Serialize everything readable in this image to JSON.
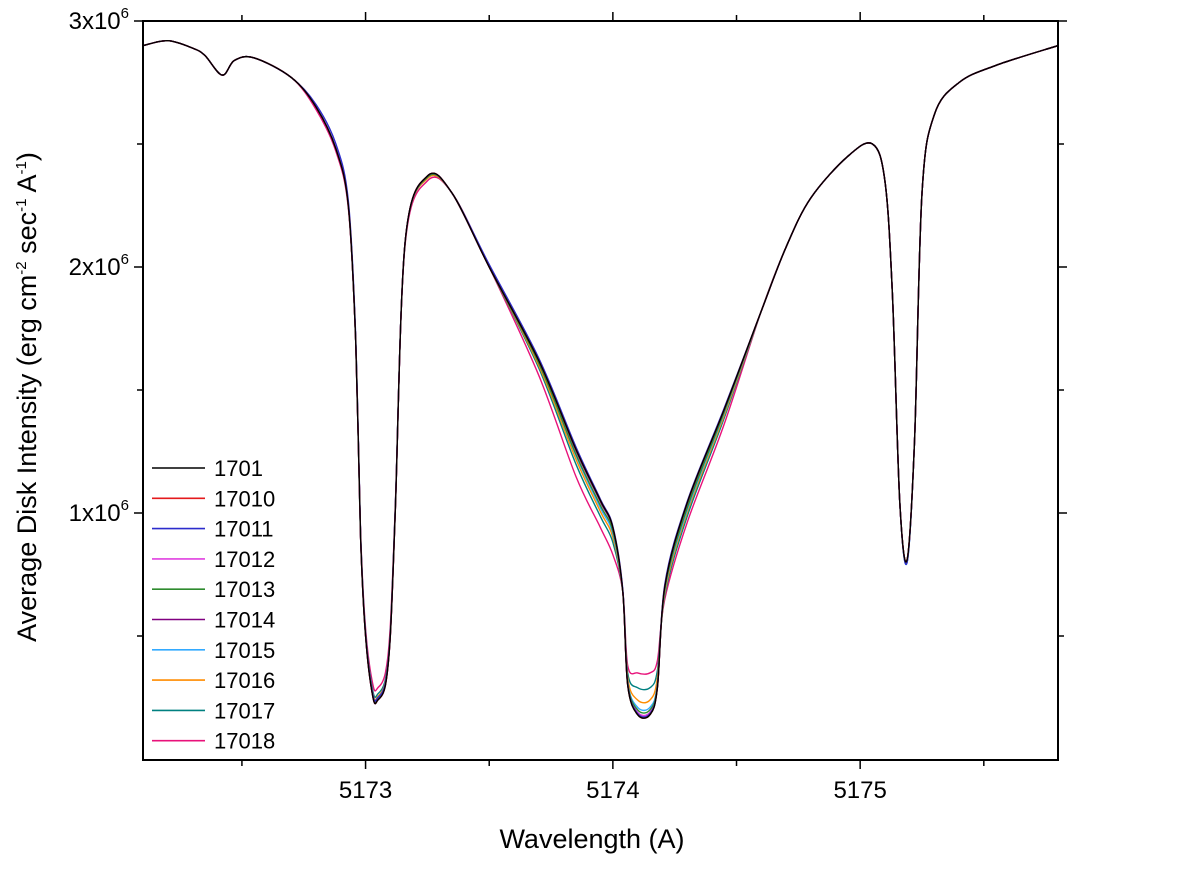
{
  "chart_data": {
    "type": "line",
    "xlabel": "Wavelength (A)",
    "ylabel": "Average Disk Intensity (erg cm-2 sec-1 A-1)",
    "ylabel_parts": {
      "a": "Average Disk Intensity (erg cm",
      "e1": "-2",
      "b": " sec",
      "e2": "-1",
      "c": " A",
      "e3": "-1",
      "d": ")"
    },
    "xlim": [
      5172.1,
      5175.8
    ],
    "ylim": [
      0,
      3000000
    ],
    "x_ticks": [
      {
        "value": 5173,
        "label": "5173"
      },
      {
        "value": 5174,
        "label": "5174"
      },
      {
        "value": 5175,
        "label": "5175"
      }
    ],
    "y_ticks": [
      {
        "value": 1000000,
        "mant": "1x10",
        "exp": "6"
      },
      {
        "value": 2000000,
        "mant": "2x10",
        "exp": "6"
      },
      {
        "value": 3000000,
        "mant": "3x10",
        "exp": "6"
      }
    ],
    "legend_position": "bottom-left",
    "x": [
      5172.1,
      5172.2,
      5172.3,
      5172.35,
      5172.42,
      5172.47,
      5172.55,
      5172.7,
      5172.8,
      5172.88,
      5172.93,
      5172.96,
      5172.98,
      5173.0,
      5173.03,
      5173.05,
      5173.08,
      5173.1,
      5173.12,
      5173.16,
      5173.25,
      5173.35,
      5173.5,
      5173.7,
      5173.85,
      5173.95,
      5174.0,
      5174.04,
      5174.06,
      5174.1,
      5174.15,
      5174.18,
      5174.21,
      5174.3,
      5174.45,
      5174.6,
      5174.7,
      5174.8,
      5174.95,
      5175.05,
      5175.1,
      5175.13,
      5175.16,
      5175.19,
      5175.22,
      5175.25,
      5175.3,
      5175.4,
      5175.55,
      5175.8
    ],
    "series": [
      {
        "name": "1701",
        "color": "#000000",
        "values": [
          2900000,
          2920000,
          2890000,
          2860000,
          2780000,
          2840000,
          2850000,
          2770000,
          2650000,
          2480000,
          2250000,
          1700000,
          900000,
          500000,
          250000,
          240000,
          300000,
          500000,
          1000000,
          2100000,
          2370000,
          2300000,
          2000000,
          1620000,
          1260000,
          1050000,
          940000,
          680000,
          300000,
          180000,
          180000,
          290000,
          700000,
          1040000,
          1420000,
          1820000,
          2080000,
          2280000,
          2450000,
          2500000,
          2350000,
          1900000,
          1050000,
          810000,
          1300000,
          2300000,
          2620000,
          2750000,
          2820000,
          2900000
        ]
      },
      {
        "name": "17010",
        "color": "#e41a1c",
        "values": [
          2900000,
          2920000,
          2890000,
          2860000,
          2780000,
          2840000,
          2850000,
          2770000,
          2650000,
          2480000,
          2250000,
          1700000,
          900000,
          500000,
          250000,
          240000,
          300000,
          500000,
          1000000,
          2100000,
          2370000,
          2300000,
          2000000,
          1620000,
          1260000,
          1050000,
          940000,
          680000,
          300000,
          180000,
          180000,
          290000,
          700000,
          1040000,
          1420000,
          1820000,
          2080000,
          2280000,
          2450000,
          2500000,
          2350000,
          1900000,
          1050000,
          810000,
          1300000,
          2300000,
          2620000,
          2750000,
          2820000,
          2900000
        ]
      },
      {
        "name": "17011",
        "color": "#2c2ccc",
        "values": [
          2900000,
          2920000,
          2890000,
          2860000,
          2780000,
          2840000,
          2850000,
          2770000,
          2660000,
          2500000,
          2270000,
          1720000,
          910000,
          510000,
          260000,
          250000,
          310000,
          510000,
          1010000,
          2100000,
          2370000,
          2300000,
          2010000,
          1630000,
          1270000,
          1055000,
          945000,
          690000,
          305000,
          185000,
          185000,
          295000,
          710000,
          1045000,
          1425000,
          1820000,
          2080000,
          2280000,
          2450000,
          2500000,
          2350000,
          1900000,
          1050000,
          800000,
          1300000,
          2300000,
          2620000,
          2750000,
          2820000,
          2900000
        ]
      },
      {
        "name": "17012",
        "color": "#e040e0",
        "values": [
          2900000,
          2920000,
          2890000,
          2860000,
          2780000,
          2840000,
          2850000,
          2770000,
          2650000,
          2480000,
          2250000,
          1700000,
          900000,
          500000,
          250000,
          240000,
          300000,
          500000,
          1000000,
          2100000,
          2370000,
          2300000,
          2000000,
          1620000,
          1260000,
          1050000,
          940000,
          680000,
          300000,
          190000,
          190000,
          290000,
          700000,
          1040000,
          1420000,
          1820000,
          2080000,
          2280000,
          2450000,
          2500000,
          2350000,
          1900000,
          1050000,
          810000,
          1300000,
          2300000,
          2620000,
          2750000,
          2820000,
          2900000
        ]
      },
      {
        "name": "17013",
        "color": "#2e8b2e",
        "values": [
          2900000,
          2920000,
          2890000,
          2860000,
          2780000,
          2840000,
          2850000,
          2770000,
          2650000,
          2480000,
          2250000,
          1700000,
          900000,
          500000,
          255000,
          245000,
          305000,
          505000,
          1005000,
          2100000,
          2365000,
          2300000,
          2000000,
          1610000,
          1240000,
          1030000,
          925000,
          680000,
          310000,
          200000,
          200000,
          300000,
          690000,
          1020000,
          1410000,
          1820000,
          2080000,
          2280000,
          2450000,
          2500000,
          2350000,
          1900000,
          1050000,
          810000,
          1300000,
          2300000,
          2620000,
          2750000,
          2820000,
          2900000
        ]
      },
      {
        "name": "17014",
        "color": "#800080",
        "values": [
          2900000,
          2920000,
          2890000,
          2860000,
          2780000,
          2840000,
          2850000,
          2770000,
          2650000,
          2480000,
          2250000,
          1700000,
          900000,
          500000,
          250000,
          240000,
          300000,
          500000,
          1000000,
          2100000,
          2370000,
          2300000,
          2000000,
          1620000,
          1255000,
          1045000,
          935000,
          680000,
          305000,
          190000,
          190000,
          295000,
          700000,
          1035000,
          1415000,
          1820000,
          2080000,
          2280000,
          2450000,
          2500000,
          2350000,
          1900000,
          1050000,
          810000,
          1300000,
          2300000,
          2620000,
          2750000,
          2820000,
          2900000
        ]
      },
      {
        "name": "17015",
        "color": "#33aaff",
        "values": [
          2900000,
          2920000,
          2890000,
          2860000,
          2780000,
          2840000,
          2850000,
          2770000,
          2650000,
          2480000,
          2250000,
          1700000,
          905000,
          505000,
          260000,
          250000,
          310000,
          505000,
          1005000,
          2100000,
          2365000,
          2300000,
          2000000,
          1610000,
          1235000,
          1020000,
          915000,
          680000,
          315000,
          210000,
          210000,
          305000,
          685000,
          1010000,
          1405000,
          1820000,
          2080000,
          2280000,
          2450000,
          2500000,
          2350000,
          1900000,
          1050000,
          800000,
          1300000,
          2300000,
          2620000,
          2750000,
          2820000,
          2900000
        ]
      },
      {
        "name": "17016",
        "color": "#ff8c00",
        "values": [
          2900000,
          2920000,
          2890000,
          2860000,
          2780000,
          2840000,
          2850000,
          2770000,
          2650000,
          2480000,
          2250000,
          1700000,
          905000,
          510000,
          265000,
          255000,
          315000,
          510000,
          1005000,
          2100000,
          2360000,
          2300000,
          2000000,
          1600000,
          1220000,
          1005000,
          900000,
          680000,
          330000,
          240000,
          240000,
          330000,
          675000,
          1000000,
          1395000,
          1820000,
          2080000,
          2280000,
          2450000,
          2500000,
          2350000,
          1900000,
          1050000,
          810000,
          1300000,
          2300000,
          2620000,
          2750000,
          2820000,
          2900000
        ]
      },
      {
        "name": "17017",
        "color": "#008080",
        "values": [
          2900000,
          2920000,
          2890000,
          2860000,
          2780000,
          2840000,
          2850000,
          2770000,
          2650000,
          2480000,
          2250000,
          1700000,
          910000,
          515000,
          275000,
          265000,
          325000,
          515000,
          1010000,
          2100000,
          2360000,
          2300000,
          2000000,
          1590000,
          1200000,
          985000,
          880000,
          680000,
          350000,
          290000,
          290000,
          360000,
          665000,
          985000,
          1385000,
          1820000,
          2080000,
          2280000,
          2450000,
          2500000,
          2350000,
          1900000,
          1050000,
          800000,
          1300000,
          2300000,
          2620000,
          2750000,
          2820000,
          2900000
        ]
      },
      {
        "name": "17018",
        "color": "#e8127a",
        "values": [
          2900000,
          2920000,
          2890000,
          2860000,
          2780000,
          2840000,
          2850000,
          2770000,
          2640000,
          2470000,
          2240000,
          1700000,
          920000,
          530000,
          300000,
          290000,
          350000,
          540000,
          1020000,
          2090000,
          2350000,
          2300000,
          2000000,
          1560000,
          1150000,
          940000,
          830000,
          680000,
          380000,
          350000,
          350000,
          400000,
          650000,
          960000,
          1360000,
          1820000,
          2080000,
          2280000,
          2450000,
          2500000,
          2350000,
          1900000,
          1050000,
          810000,
          1300000,
          2300000,
          2620000,
          2750000,
          2820000,
          2900000
        ]
      }
    ]
  }
}
